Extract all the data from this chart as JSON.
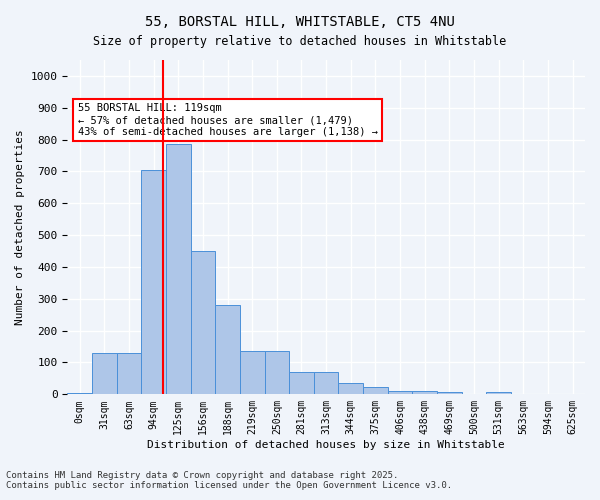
{
  "title1": "55, BORSTAL HILL, WHITSTABLE, CT5 4NU",
  "title2": "Size of property relative to detached houses in Whitstable",
  "xlabel": "Distribution of detached houses by size in Whitstable",
  "ylabel": "Number of detached properties",
  "bin_labels": [
    "0sqm",
    "31sqm",
    "63sqm",
    "94sqm",
    "125sqm",
    "156sqm",
    "188sqm",
    "219sqm",
    "250sqm",
    "281sqm",
    "313sqm",
    "344sqm",
    "375sqm",
    "406sqm",
    "438sqm",
    "469sqm",
    "500sqm",
    "531sqm",
    "563sqm",
    "594sqm",
    "625sqm"
  ],
  "bar_heights": [
    5,
    130,
    130,
    705,
    785,
    450,
    280,
    135,
    135,
    70,
    70,
    35,
    22,
    12,
    12,
    8,
    0,
    8,
    0,
    0,
    0
  ],
  "bar_color": "#aec6e8",
  "bar_edge_color": "#4a90d9",
  "annotation_text": "55 BORSTAL HILL: 119sqm\n← 57% of detached houses are smaller (1,479)\n43% of semi-detached houses are larger (1,138) →",
  "red_line_x": 3.87,
  "ylim": [
    0,
    1050
  ],
  "yticks": [
    0,
    100,
    200,
    300,
    400,
    500,
    600,
    700,
    800,
    900,
    1000
  ],
  "background_color": "#f0f4fa",
  "grid_color": "#ffffff",
  "footer1": "Contains HM Land Registry data © Crown copyright and database right 2025.",
  "footer2": "Contains public sector information licensed under the Open Government Licence v3.0."
}
